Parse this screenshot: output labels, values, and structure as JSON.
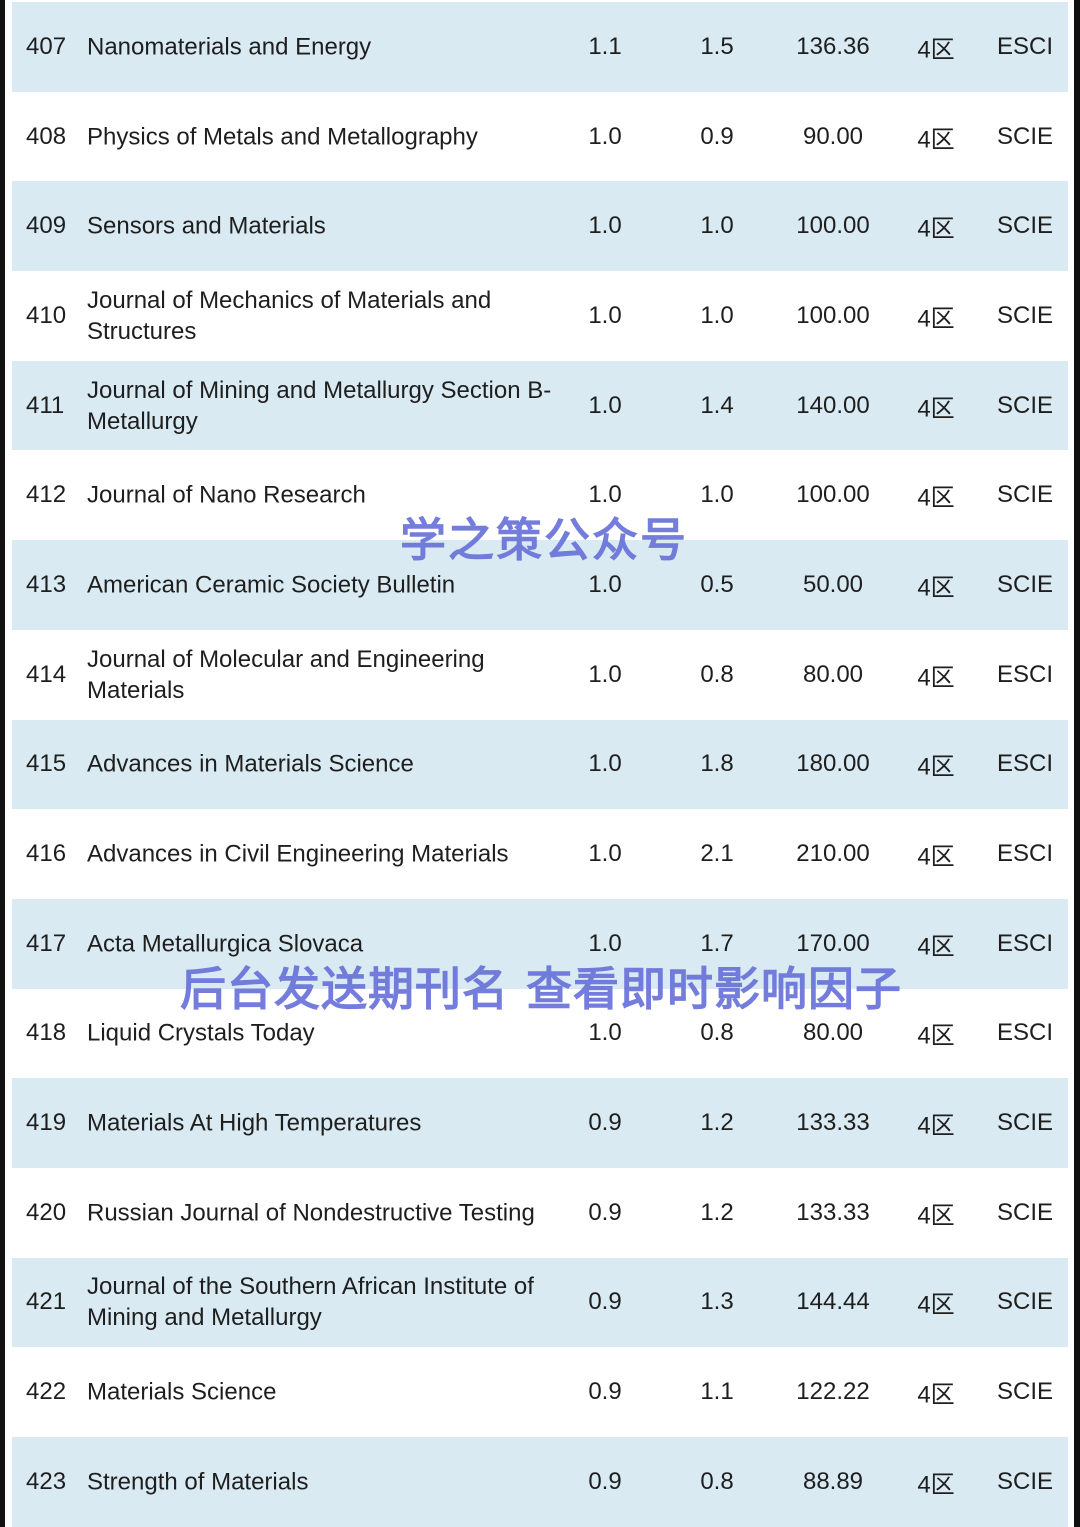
{
  "rows": [
    {
      "rank": "407",
      "title": "Nanomaterials and Energy",
      "c1": "1.1",
      "c2": "1.5",
      "c3": "136.36",
      "zone": "4区",
      "index": "ESCI"
    },
    {
      "rank": "408",
      "title": "Physics of Metals and Metallography",
      "c1": "1.0",
      "c2": "0.9",
      "c3": "90.00",
      "zone": "4区",
      "index": "SCIE"
    },
    {
      "rank": "409",
      "title": "Sensors and Materials",
      "c1": "1.0",
      "c2": "1.0",
      "c3": "100.00",
      "zone": "4区",
      "index": "SCIE"
    },
    {
      "rank": "410",
      "title": "Journal of Mechanics of Materials and Structures",
      "c1": "1.0",
      "c2": "1.0",
      "c3": "100.00",
      "zone": "4区",
      "index": "SCIE"
    },
    {
      "rank": "411",
      "title": "Journal of Mining and Metallurgy Section B-Metallurgy",
      "c1": "1.0",
      "c2": "1.4",
      "c3": "140.00",
      "zone": "4区",
      "index": "SCIE"
    },
    {
      "rank": "412",
      "title": "Journal of Nano Research",
      "c1": "1.0",
      "c2": "1.0",
      "c3": "100.00",
      "zone": "4区",
      "index": "SCIE"
    },
    {
      "rank": "413",
      "title": "American Ceramic Society Bulletin",
      "c1": "1.0",
      "c2": "0.5",
      "c3": "50.00",
      "zone": "4区",
      "index": "SCIE"
    },
    {
      "rank": "414",
      "title": "Journal of Molecular and Engineering Materials",
      "c1": "1.0",
      "c2": "0.8",
      "c3": "80.00",
      "zone": "4区",
      "index": "ESCI"
    },
    {
      "rank": "415",
      "title": "Advances in Materials Science",
      "c1": "1.0",
      "c2": "1.8",
      "c3": "180.00",
      "zone": "4区",
      "index": "ESCI"
    },
    {
      "rank": "416",
      "title": "Advances in Civil Engineering Materials",
      "c1": "1.0",
      "c2": "2.1",
      "c3": "210.00",
      "zone": "4区",
      "index": "ESCI"
    },
    {
      "rank": "417",
      "title": "Acta Metallurgica Slovaca",
      "c1": "1.0",
      "c2": "1.7",
      "c3": "170.00",
      "zone": "4区",
      "index": "ESCI"
    },
    {
      "rank": "418",
      "title": "Liquid Crystals Today",
      "c1": "1.0",
      "c2": "0.8",
      "c3": "80.00",
      "zone": "4区",
      "index": "ESCI"
    },
    {
      "rank": "419",
      "title": "Materials At High Temperatures",
      "c1": "0.9",
      "c2": "1.2",
      "c3": "133.33",
      "zone": "4区",
      "index": "SCIE"
    },
    {
      "rank": "420",
      "title": "Russian Journal of Nondestructive Testing",
      "c1": "0.9",
      "c2": "1.2",
      "c3": "133.33",
      "zone": "4区",
      "index": "SCIE"
    },
    {
      "rank": "421",
      "title": "Journal of the Southern African Institute of Mining and Metallurgy",
      "c1": "0.9",
      "c2": "1.3",
      "c3": "144.44",
      "zone": "4区",
      "index": "SCIE"
    },
    {
      "rank": "422",
      "title": "Materials Science",
      "c1": "0.9",
      "c2": "1.1",
      "c3": "122.22",
      "zone": "4区",
      "index": "SCIE"
    },
    {
      "rank": "423",
      "title": "Strength of Materials",
      "c1": "0.9",
      "c2": "0.8",
      "c3": "88.89",
      "zone": "4区",
      "index": "SCIE"
    }
  ],
  "watermarks": {
    "account": "学之策公众号",
    "prompt": "后台发送期刊名 查看即时影响因子"
  },
  "colors": {
    "row_alt": "#d9eaf2",
    "watermark": "#6670d8"
  }
}
